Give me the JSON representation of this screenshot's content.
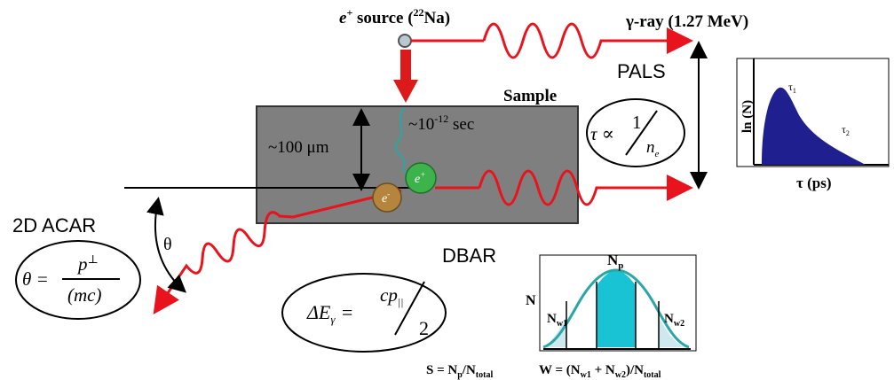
{
  "source": {
    "label": "e",
    "sup": "+",
    "rest": " source (",
    "iso_sup": "22",
    "iso_rest": "Na)"
  },
  "gamma": {
    "label": "γ-ray (1.27 MeV)"
  },
  "pals": {
    "label": "PALS",
    "tau1": "τ",
    "tau1_sub": "1",
    "tau2": "τ",
    "tau2_sub": "2",
    "ylabel": "ln (N)",
    "xlabel": "τ (ps)"
  },
  "formula_tau": {
    "lhs": "τ ∝",
    "num": "1",
    "den": "n",
    "den_sub": "e"
  },
  "sample": {
    "label": "Sample",
    "thickness": "~100 μm",
    "time": "~10",
    "time_exp": "-12",
    "time_unit": " sec"
  },
  "particles": {
    "positron": "e",
    "positron_sup": "+",
    "electron": "e",
    "electron_sup": "-"
  },
  "acar": {
    "label": "2D ACAR",
    "theta": "θ",
    "lhs": "θ =",
    "num": "p",
    "num_sup": "⊥",
    "den": "(mc)"
  },
  "dbar": {
    "label": "DBAR",
    "lhs": "ΔE",
    "lhs_sub": "γ",
    "eq": "=",
    "num": "cp",
    "num_sub": "||",
    "den": "2",
    "np": "N",
    "np_sub": "p",
    "nw1": "N",
    "nw1_sub": "w1",
    "nw2": "N",
    "nw2_sub": "w2",
    "n": "N"
  },
  "params": {
    "s": "S = N",
    "s_sub1": "p",
    "s_mid": "/N",
    "s_sub2": "total",
    "w": "W = (N",
    "w_sub1": "w1",
    "w_mid": " + N",
    "w_sub2": "w2",
    "w_end": ")/N",
    "w_sub3": "total"
  },
  "colors": {
    "wave": "#e8131c",
    "sample": "#7f7f7f",
    "positron": "#3cb44b",
    "electron": "#b5843d",
    "pals_fill": "#1f1f8f",
    "dbar_fill": "#19c3d3",
    "arrow": "#dd1a1a"
  }
}
